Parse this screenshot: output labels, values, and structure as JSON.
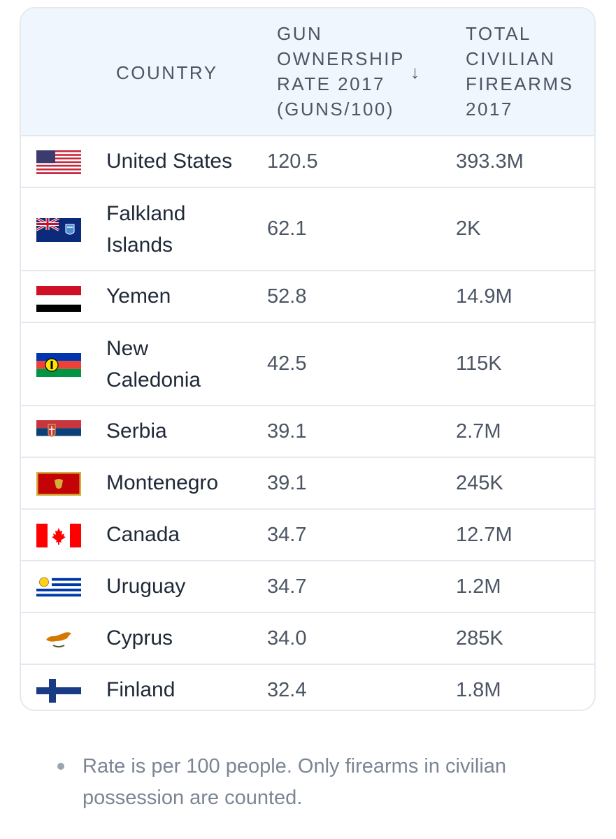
{
  "table": {
    "headers": {
      "country": "COUNTRY",
      "rate": "GUN OWNERSHIP RATE 2017 (GUNS/100)",
      "total": "TOTAL CIVILIAN FIREARMS 2017"
    },
    "sort_icon": "arrow-down-icon",
    "rows": [
      {
        "country": "United States",
        "rate": "120.5",
        "total": "393.3M",
        "flag": "us-flag-icon"
      },
      {
        "country": "Falkland Islands",
        "rate": "62.1",
        "total": "2K",
        "flag": "falkland-islands-flag-icon"
      },
      {
        "country": "Yemen",
        "rate": "52.8",
        "total": "14.9M",
        "flag": "yemen-flag-icon"
      },
      {
        "country": "New Caledonia",
        "rate": "42.5",
        "total": "115K",
        "flag": "new-caledonia-flag-icon"
      },
      {
        "country": "Serbia",
        "rate": "39.1",
        "total": "2.7M",
        "flag": "serbia-flag-icon"
      },
      {
        "country": "Montenegro",
        "rate": "39.1",
        "total": "245K",
        "flag": "montenegro-flag-icon"
      },
      {
        "country": "Canada",
        "rate": "34.7",
        "total": "12.7M",
        "flag": "canada-flag-icon"
      },
      {
        "country": "Uruguay",
        "rate": "34.7",
        "total": "1.2M",
        "flag": "uruguay-flag-icon"
      },
      {
        "country": "Cyprus",
        "rate": "34.0",
        "total": "285K",
        "flag": "cyprus-flag-icon"
      },
      {
        "country": "Finland",
        "rate": "32.4",
        "total": "1.8M",
        "flag": "finland-flag-icon"
      }
    ]
  },
  "footnote": "Rate is per 100 people. Only firearms in civilian possession are counted."
}
